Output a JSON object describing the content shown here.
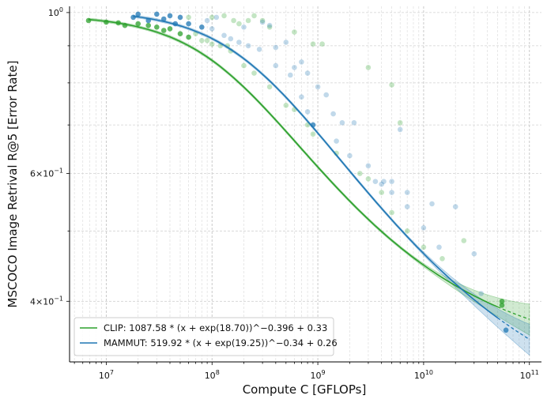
{
  "chart_data": {
    "type": "scatter",
    "xlabel": "Compute C [GFLOPs]",
    "ylabel": "MSCOCO Image Retrival R@5 [Error Rate]",
    "xscale": "log",
    "yscale": "log",
    "xlim": [
      4500000.0,
      130000000000.0
    ],
    "ylim": [
      0.33,
      1.02
    ],
    "grid": true,
    "legend_position": "lower-left",
    "x_ticks": [
      {
        "value": 10000000.0,
        "base": "10",
        "exp": "7"
      },
      {
        "value": 100000000.0,
        "base": "10",
        "exp": "8"
      },
      {
        "value": 1000000000.0,
        "base": "10",
        "exp": "9"
      },
      {
        "value": 10000000000.0,
        "base": "10",
        "exp": "10"
      },
      {
        "value": 100000000000.0,
        "base": "10",
        "exp": "11"
      }
    ],
    "y_ticks": [
      {
        "value": 1.0,
        "mant": "",
        "base": "10",
        "exp": "0"
      },
      {
        "value": 0.6,
        "mant": "6×",
        "base": "10",
        "exp": "−1"
      },
      {
        "value": 0.4,
        "mant": "4×",
        "base": "10",
        "exp": "−1"
      }
    ],
    "series": [
      {
        "name": "CLIP",
        "legend": "CLIP: 1087.58 * (x + exp(18.70))^−0.396 + 0.33",
        "color": "#2ca02c",
        "fit": {
          "A": 1087.58,
          "lnx0": 18.7,
          "alpha": 0.396,
          "c": 0.33
        },
        "fit_range": [
          6800000.0,
          50000000000.0
        ],
        "extrapolate_to": 100000000000.0,
        "points": [
          [
            6800000.0,
            0.975
          ],
          [
            10000000.0,
            0.97
          ],
          [
            13000000.0,
            0.968
          ],
          [
            15000000.0,
            0.96
          ],
          [
            20000000.0,
            0.965
          ],
          [
            25000000.0,
            0.96
          ],
          [
            30000000.0,
            0.955
          ],
          [
            35000000.0,
            0.945
          ],
          [
            40000000.0,
            0.95
          ],
          [
            50000000.0,
            0.935
          ],
          [
            60000000.0,
            0.925
          ],
          [
            70000000.0,
            0.935
          ],
          [
            80000000.0,
            0.915
          ],
          [
            90000000.0,
            0.915
          ],
          [
            100000000.0,
            0.905
          ],
          [
            120000000.0,
            0.9
          ],
          [
            140000000.0,
            0.9
          ],
          [
            150000000.0,
            0.885
          ],
          [
            200000000.0,
            0.845
          ],
          [
            250000000.0,
            0.825
          ],
          [
            350000000.0,
            0.79
          ],
          [
            500000000.0,
            0.745
          ],
          [
            600000000.0,
            0.735
          ],
          [
            800000000.0,
            0.7
          ],
          [
            900000000.0,
            0.68
          ],
          [
            1500000000.0,
            0.64
          ],
          [
            2500000000.0,
            0.6
          ],
          [
            3000000000.0,
            0.59
          ],
          [
            4000000000.0,
            0.565
          ],
          [
            5000000000.0,
            0.53
          ],
          [
            7000000000.0,
            0.5
          ],
          [
            10000000000.0,
            0.475
          ],
          [
            15000000000.0,
            0.458
          ],
          [
            55000000000.0,
            0.4
          ],
          [
            60000000.0,
            0.985
          ],
          [
            100000000.0,
            0.985
          ],
          [
            130000000.0,
            0.99
          ],
          [
            160000000.0,
            0.975
          ],
          [
            180000000.0,
            0.965
          ],
          [
            220000000.0,
            0.975
          ],
          [
            250000000.0,
            0.99
          ],
          [
            300000000.0,
            0.975
          ],
          [
            350000000.0,
            0.955
          ],
          [
            600000000.0,
            0.94
          ],
          [
            900000000.0,
            0.905
          ],
          [
            1100000000.0,
            0.905
          ],
          [
            3000000000.0,
            0.84
          ],
          [
            5000000000.0,
            0.795
          ],
          [
            6000000000.0,
            0.705
          ],
          [
            24000000000.0,
            0.485
          ],
          [
            55000000000.0,
            0.395
          ]
        ]
      },
      {
        "name": "MAMMUT",
        "legend": "MAMMUT: 519.92 * (x + exp(19.25))^−0.34 + 0.26",
        "color": "#1f77b4",
        "fit": {
          "A": 519.92,
          "lnx0": 19.25,
          "alpha": 0.34,
          "c": 0.26
        },
        "fit_range": [
          18000000.0,
          50000000000.0
        ],
        "extrapolate_to": 100000000000.0,
        "points": [
          [
            18000000.0,
            0.985
          ],
          [
            25000000.0,
            0.975
          ],
          [
            35000000.0,
            0.98
          ],
          [
            45000000.0,
            0.965
          ],
          [
            60000000.0,
            0.965
          ],
          [
            80000000.0,
            0.955
          ],
          [
            100000000.0,
            0.95
          ],
          [
            130000000.0,
            0.93
          ],
          [
            150000000.0,
            0.92
          ],
          [
            180000000.0,
            0.91
          ],
          [
            220000000.0,
            0.9
          ],
          [
            280000000.0,
            0.89
          ],
          [
            400000000.0,
            0.845
          ],
          [
            550000000.0,
            0.82
          ],
          [
            700000000.0,
            0.765
          ],
          [
            800000000.0,
            0.73
          ],
          [
            900000000.0,
            0.7
          ],
          [
            1500000000.0,
            0.665
          ],
          [
            2000000000.0,
            0.635
          ],
          [
            3500000000.0,
            0.585
          ],
          [
            5000000000.0,
            0.565
          ],
          [
            7000000000.0,
            0.54
          ],
          [
            10000000000.0,
            0.505
          ],
          [
            14000000000.0,
            0.475
          ],
          [
            35000000000.0,
            0.41
          ],
          [
            60000000000.0,
            0.365
          ],
          [
            20000000.0,
            0.995
          ],
          [
            30000000.0,
            0.995
          ],
          [
            40000000.0,
            0.99
          ],
          [
            50000000.0,
            0.985
          ],
          [
            90000000.0,
            0.975
          ],
          [
            110000000.0,
            0.985
          ],
          [
            200000000.0,
            0.955
          ],
          [
            300000000.0,
            0.97
          ],
          [
            350000000.0,
            0.96
          ],
          [
            400000000.0,
            0.895
          ],
          [
            500000000.0,
            0.91
          ],
          [
            600000000.0,
            0.84
          ],
          [
            700000000.0,
            0.855
          ],
          [
            800000000.0,
            0.825
          ],
          [
            1000000000.0,
            0.79
          ],
          [
            1200000000.0,
            0.77
          ],
          [
            1400000000.0,
            0.725
          ],
          [
            1700000000.0,
            0.705
          ],
          [
            2200000000.0,
            0.705
          ],
          [
            3000000000.0,
            0.615
          ],
          [
            4000000000.0,
            0.58
          ],
          [
            4200000000.0,
            0.585
          ],
          [
            5000000000.0,
            0.585
          ],
          [
            6000000000.0,
            0.69
          ],
          [
            7000000000.0,
            0.565
          ],
          [
            12000000000.0,
            0.545
          ],
          [
            20000000000.0,
            0.54
          ],
          [
            30000000000.0,
            0.465
          ]
        ]
      }
    ]
  }
}
